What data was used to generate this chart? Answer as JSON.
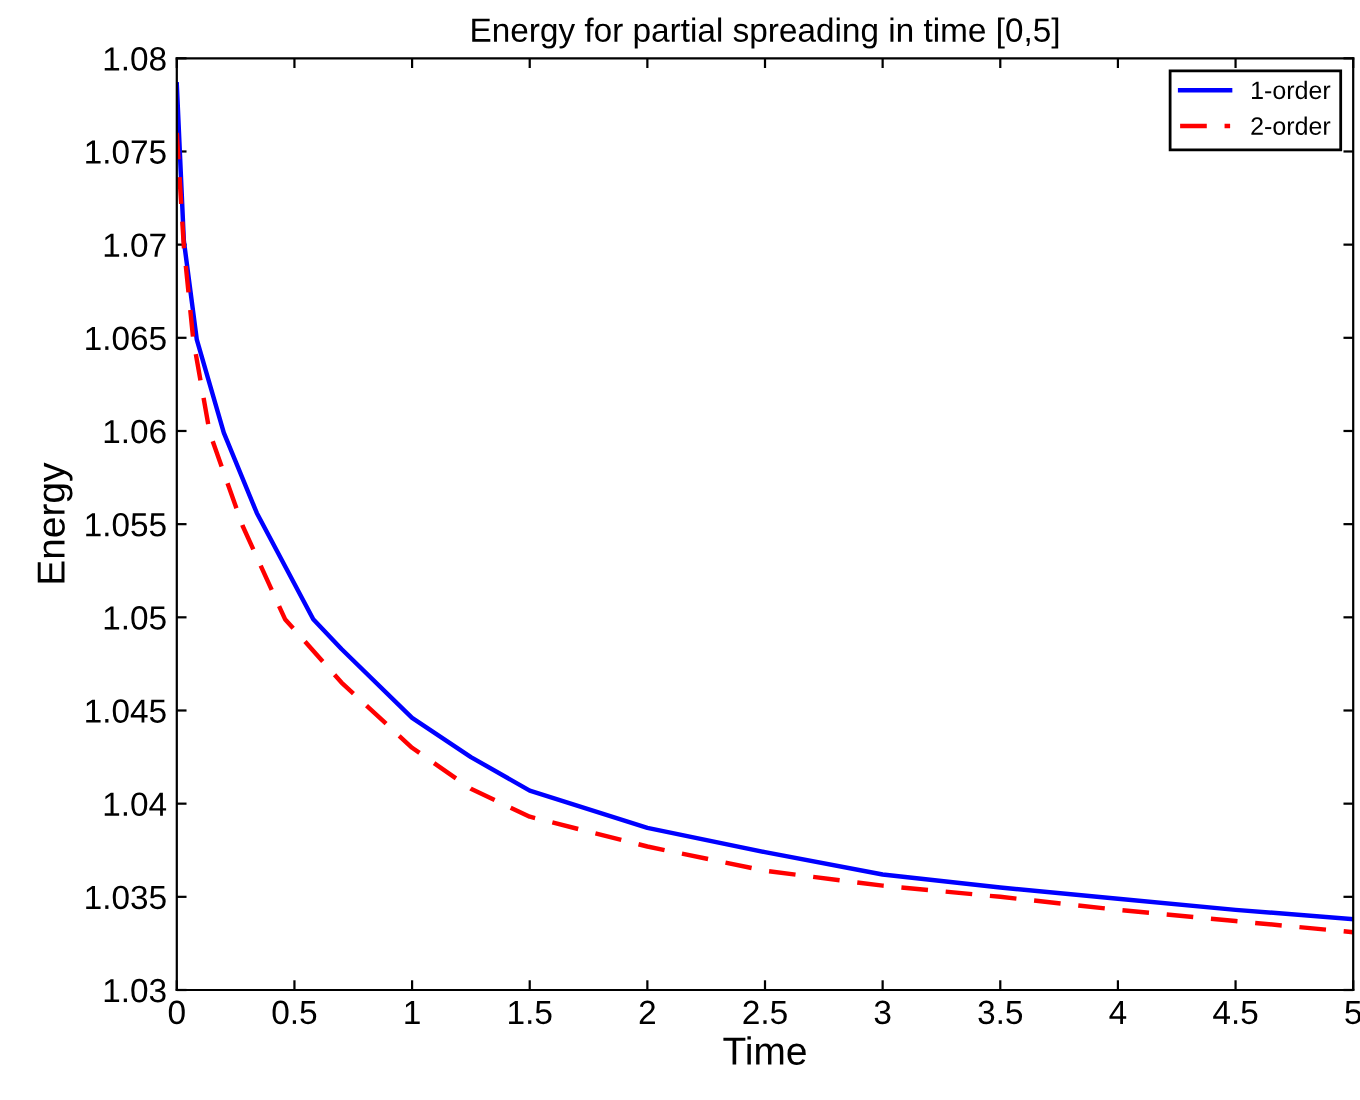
{
  "chart_data": {
    "type": "line",
    "title": "Energy for partial spreading in time [0,5]",
    "xlabel": "Time",
    "ylabel": "Energy",
    "series": [
      {
        "name": "1-order",
        "color": "#0000ff",
        "line_style": "solid",
        "x": [
          0,
          0.03,
          0.085,
          0.2,
          0.34,
          0.58,
          0.7,
          1,
          1.25,
          1.5,
          2,
          2.5,
          3,
          3.5,
          4,
          4.5,
          5
        ],
        "values": [
          1.0786,
          1.0702,
          1.0649,
          1.0599,
          1.0556,
          1.0499,
          1.0483,
          1.0446,
          1.0425,
          1.0407,
          1.0387,
          1.0374,
          1.0362,
          1.0355,
          1.0349,
          1.0343,
          1.0338
        ]
      },
      {
        "name": "2-order",
        "color": "#ff0000",
        "line_style": "dashed",
        "x": [
          0,
          0.03,
          0.07,
          0.14,
          0.28,
          0.46,
          0.7,
          1,
          1.25,
          1.5,
          2,
          2.5,
          3,
          3.5,
          4,
          4.5,
          5
        ],
        "values": [
          1.076,
          1.0699,
          1.0649,
          1.0599,
          1.0549,
          1.0499,
          1.0465,
          1.043,
          1.0408,
          1.0393,
          1.0377,
          1.0364,
          1.0356,
          1.035,
          1.0343,
          1.0337,
          1.0331
        ]
      }
    ],
    "xlim": [
      0,
      5
    ],
    "ylim": [
      1.03,
      1.08
    ],
    "xticks": [
      0,
      0.5,
      1,
      1.5,
      2,
      2.5,
      3,
      3.5,
      4,
      4.5,
      5
    ],
    "yticks": [
      1.03,
      1.035,
      1.04,
      1.045,
      1.05,
      1.055,
      1.06,
      1.065,
      1.07,
      1.075,
      1.08
    ],
    "grid": false,
    "legend": "top right"
  }
}
